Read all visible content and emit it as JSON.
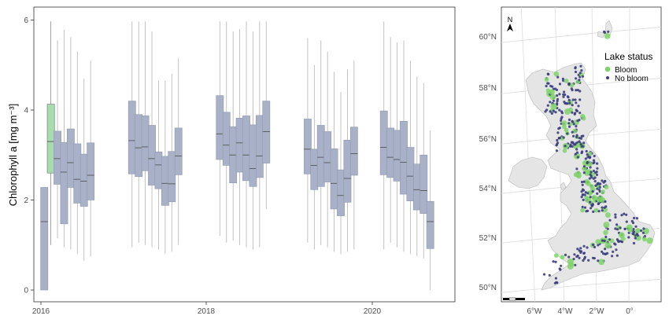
{
  "chart_data": [
    {
      "type": "box",
      "ylabel": "Chlorophyll a [mg m⁻³]",
      "ylim": [
        -0.2,
        6.3
      ],
      "y_ticks": [
        "0",
        "2",
        "4",
        "6"
      ],
      "x_ticks": [
        "2016",
        "2018",
        "2020"
      ],
      "grid": false,
      "colors": {
        "no_bloom": "#a9b1c8",
        "bloom": "#a8dcae",
        "whisker": "#b4b4b4",
        "median": "#555555"
      },
      "boxes": [
        {
          "x": 2016.04,
          "lo": 0.0,
          "q1": 0.0,
          "med": 1.52,
          "q3": 2.28,
          "hi": 2.28,
          "bloom": false
        },
        {
          "x": 2016.12,
          "lo": 1.0,
          "q1": 2.6,
          "med": 3.3,
          "q3": 4.13,
          "hi": 5.97,
          "bloom": true
        },
        {
          "x": 2016.2,
          "lo": 1.15,
          "q1": 2.35,
          "med": 2.92,
          "q3": 3.53,
          "hi": 5.55,
          "bloom": false
        },
        {
          "x": 2016.28,
          "lo": 0.95,
          "q1": 1.47,
          "med": 2.62,
          "q3": 3.28,
          "hi": 5.78,
          "bloom": false
        },
        {
          "x": 2016.36,
          "lo": 0.9,
          "q1": 2.28,
          "med": 2.83,
          "q3": 3.58,
          "hi": 5.62,
          "bloom": false
        },
        {
          "x": 2016.44,
          "lo": 0.8,
          "q1": 1.93,
          "med": 2.46,
          "q3": 3.25,
          "hi": 5.3,
          "bloom": false
        },
        {
          "x": 2016.52,
          "lo": 0.65,
          "q1": 1.86,
          "med": 2.42,
          "q3": 3.02,
          "hi": 4.7,
          "bloom": false
        },
        {
          "x": 2016.6,
          "lo": 0.75,
          "q1": 2.0,
          "med": 2.55,
          "q3": 3.27,
          "hi": 5.1,
          "bloom": false
        },
        {
          "x": 2017.1,
          "lo": 0.95,
          "q1": 2.58,
          "med": 3.32,
          "q3": 4.2,
          "hi": 5.97,
          "bloom": false
        },
        {
          "x": 2017.18,
          "lo": 1.05,
          "q1": 2.52,
          "med": 3.16,
          "q3": 3.9,
          "hi": 5.97,
          "bloom": false
        },
        {
          "x": 2017.26,
          "lo": 1.0,
          "q1": 2.65,
          "med": 3.18,
          "q3": 3.87,
          "hi": 5.97,
          "bloom": false
        },
        {
          "x": 2017.34,
          "lo": 0.95,
          "q1": 2.33,
          "med": 2.92,
          "q3": 3.66,
          "hi": 5.75,
          "bloom": false
        },
        {
          "x": 2017.42,
          "lo": 0.9,
          "q1": 2.25,
          "med": 2.78,
          "q3": 3.07,
          "hi": 4.65,
          "bloom": false
        },
        {
          "x": 2017.5,
          "lo": 0.8,
          "q1": 1.88,
          "med": 2.37,
          "q3": 2.97,
          "hi": 4.65,
          "bloom": false
        },
        {
          "x": 2017.58,
          "lo": 0.85,
          "q1": 1.96,
          "med": 2.36,
          "q3": 3.08,
          "hi": 4.8,
          "bloom": false
        },
        {
          "x": 2017.66,
          "lo": 1.0,
          "q1": 2.56,
          "med": 2.98,
          "q3": 3.6,
          "hi": 5.15,
          "bloom": false
        },
        {
          "x": 2018.16,
          "lo": 1.2,
          "q1": 2.9,
          "med": 3.47,
          "q3": 4.32,
          "hi": 5.97,
          "bloom": false
        },
        {
          "x": 2018.24,
          "lo": 1.05,
          "q1": 2.77,
          "med": 3.22,
          "q3": 3.95,
          "hi": 5.97,
          "bloom": false
        },
        {
          "x": 2018.32,
          "lo": 1.1,
          "q1": 2.38,
          "med": 3.0,
          "q3": 3.63,
          "hi": 5.75,
          "bloom": false
        },
        {
          "x": 2018.4,
          "lo": 1.0,
          "q1": 2.62,
          "med": 3.27,
          "q3": 3.82,
          "hi": 5.8,
          "bloom": false
        },
        {
          "x": 2018.48,
          "lo": 0.95,
          "q1": 2.43,
          "med": 3.0,
          "q3": 3.87,
          "hi": 5.97,
          "bloom": false
        },
        {
          "x": 2018.56,
          "lo": 0.9,
          "q1": 2.3,
          "med": 2.7,
          "q3": 3.67,
          "hi": 5.75,
          "bloom": false
        },
        {
          "x": 2018.64,
          "lo": 0.95,
          "q1": 2.5,
          "med": 2.98,
          "q3": 3.88,
          "hi": 5.97,
          "bloom": false
        },
        {
          "x": 2018.72,
          "lo": 1.8,
          "q1": 2.82,
          "med": 3.52,
          "q3": 4.2,
          "hi": 5.97,
          "bloom": false
        },
        {
          "x": 2019.22,
          "lo": 1.05,
          "q1": 2.58,
          "med": 3.13,
          "q3": 3.8,
          "hi": 5.6,
          "bloom": false
        },
        {
          "x": 2019.3,
          "lo": 0.9,
          "q1": 2.23,
          "med": 2.77,
          "q3": 3.13,
          "hi": 5.0,
          "bloom": false
        },
        {
          "x": 2019.38,
          "lo": 1.0,
          "q1": 2.3,
          "med": 2.95,
          "q3": 3.66,
          "hi": 5.55,
          "bloom": false
        },
        {
          "x": 2019.46,
          "lo": 0.95,
          "q1": 2.4,
          "med": 2.83,
          "q3": 3.52,
          "hi": 5.3,
          "bloom": false
        },
        {
          "x": 2019.54,
          "lo": 0.85,
          "q1": 1.8,
          "med": 2.37,
          "q3": 3.14,
          "hi": 4.85,
          "bloom": false
        },
        {
          "x": 2019.62,
          "lo": 0.8,
          "q1": 1.65,
          "med": 2.1,
          "q3": 2.67,
          "hi": 4.4,
          "bloom": false
        },
        {
          "x": 2019.7,
          "lo": 0.85,
          "q1": 1.95,
          "med": 2.48,
          "q3": 3.33,
          "hi": 4.9,
          "bloom": false
        },
        {
          "x": 2019.78,
          "lo": 0.9,
          "q1": 2.55,
          "med": 3.03,
          "q3": 3.62,
          "hi": 5.1,
          "bloom": false
        },
        {
          "x": 2020.14,
          "lo": 0.9,
          "q1": 2.56,
          "med": 3.17,
          "q3": 3.98,
          "hi": 5.97,
          "bloom": false
        },
        {
          "x": 2020.22,
          "lo": 1.05,
          "q1": 2.5,
          "med": 2.95,
          "q3": 3.6,
          "hi": 5.62,
          "bloom": false
        },
        {
          "x": 2020.3,
          "lo": 0.95,
          "q1": 2.42,
          "med": 2.9,
          "q3": 3.55,
          "hi": 5.5,
          "bloom": false
        },
        {
          "x": 2020.38,
          "lo": 0.85,
          "q1": 2.13,
          "med": 2.84,
          "q3": 3.75,
          "hi": 5.55,
          "bloom": false
        },
        {
          "x": 2020.46,
          "lo": 0.8,
          "q1": 1.98,
          "med": 2.53,
          "q3": 3.17,
          "hi": 5.1,
          "bloom": false
        },
        {
          "x": 2020.54,
          "lo": 0.75,
          "q1": 1.78,
          "med": 2.23,
          "q3": 2.8,
          "hi": 4.75,
          "bloom": false
        },
        {
          "x": 2020.62,
          "lo": 0.7,
          "q1": 1.7,
          "med": 2.21,
          "q3": 3.0,
          "hi": 4.6,
          "bloom": false
        },
        {
          "x": 2020.7,
          "lo": 0.0,
          "q1": 0.92,
          "med": 1.52,
          "q3": 1.97,
          "hi": 3.55,
          "bloom": false
        }
      ]
    },
    {
      "type": "scatter",
      "subtype": "map",
      "lat_ticks": [
        "50°N",
        "52°N",
        "54°N",
        "56°N",
        "58°N",
        "60°N"
      ],
      "lon_ticks": [
        "6°W",
        "4°W",
        "2°W",
        "0°"
      ],
      "north_label": "N",
      "legend": {
        "title": "Lake status",
        "entries": [
          "Bloom",
          "No bloom"
        ],
        "placement": "top-right"
      },
      "colors": {
        "bloom": "#7fd36b",
        "no_bloom": "#3b3d7c",
        "land": "#e5e5e5",
        "graticule": "#dcdcdc"
      }
    }
  ]
}
